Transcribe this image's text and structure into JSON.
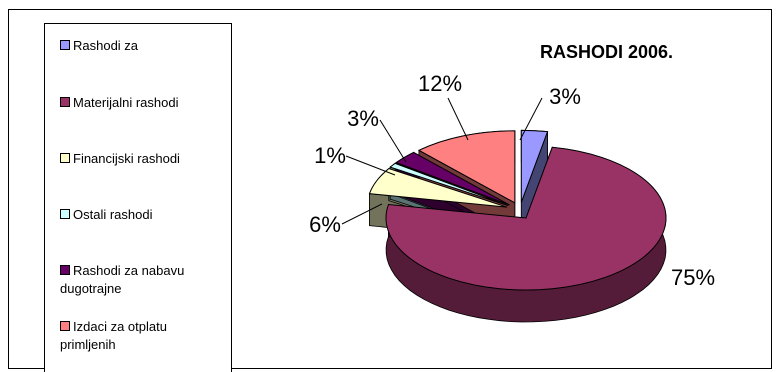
{
  "chart_data": {
    "type": "pie",
    "title": "RASHODI 2006.",
    "slices": [
      {
        "name": "Rashodi za",
        "value": 3,
        "label": "3%",
        "color": "#9999ff"
      },
      {
        "name": "Materijalni rashodi",
        "value": 75,
        "label": "75%",
        "color": "#993366"
      },
      {
        "name": "Financijski rashodi",
        "value": 6,
        "label": "6%",
        "color": "#ffffcc"
      },
      {
        "name": "Ostali rashodi",
        "value": 1,
        "label": "1%",
        "color": "#ccffff"
      },
      {
        "name": "Rashodi za nabavu dugotrajne",
        "value": 3,
        "label": "3%",
        "color": "#660066"
      },
      {
        "name": "Izdaci za otplatu primljenih",
        "value": 12,
        "label": "12%",
        "color": "#ff8080"
      }
    ],
    "legend": {
      "position": "left"
    },
    "style": "3d-exploded-pie"
  }
}
